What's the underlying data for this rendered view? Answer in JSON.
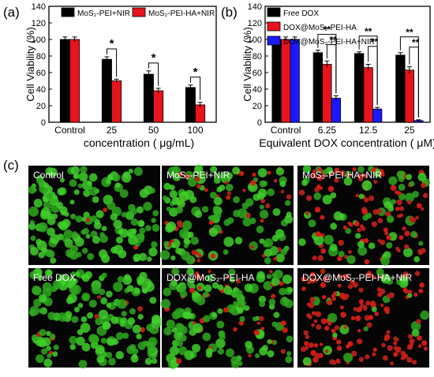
{
  "panel_labels": {
    "a": "(a)",
    "b": "(b)",
    "c": "(c)"
  },
  "chart_data": [
    {
      "type": "bar",
      "panel": "(a)",
      "title": "",
      "xlabel": "concentration ( μg/mL)",
      "ylabel": "Cell Viability (%)",
      "ylim": [
        0,
        140
      ],
      "yticks": [
        0,
        20,
        40,
        60,
        80,
        100,
        120,
        140
      ],
      "categories": [
        "Control",
        "25",
        "50",
        "100"
      ],
      "legend_position": "top",
      "series": [
        {
          "name": "MoS₂-PEI+NIR",
          "color": "#000000",
          "values": [
            100,
            76,
            58,
            42
          ],
          "errors": [
            3,
            3,
            4,
            3
          ]
        },
        {
          "name": "MoS₂-PEI-HA+NIR",
          "color": "#e8141c",
          "values": [
            100,
            50,
            38,
            21
          ],
          "errors": [
            3,
            2,
            3,
            3
          ]
        }
      ],
      "significance": [
        {
          "category": "25",
          "label": "*"
        },
        {
          "category": "50",
          "label": "*"
        },
        {
          "category": "100",
          "label": "*"
        }
      ]
    },
    {
      "type": "bar",
      "panel": "(b)",
      "title": "",
      "xlabel": "Equivalent DOX concentration ( μM)",
      "ylabel": "Cell Viability (%)",
      "ylim": [
        0,
        140
      ],
      "yticks": [
        0,
        20,
        40,
        60,
        80,
        100,
        120,
        140
      ],
      "categories": [
        "Control",
        "6.25",
        "12.5",
        "25"
      ],
      "legend_position": "top-left",
      "series": [
        {
          "name": "Free DOX",
          "color": "#000000",
          "values": [
            100,
            84,
            83,
            81
          ],
          "errors": [
            3,
            3,
            2,
            3
          ]
        },
        {
          "name": "DOX@MoS₂-PEI-HA",
          "color": "#e8141c",
          "values": [
            100,
            70,
            66,
            63
          ],
          "errors": [
            3,
            4,
            4,
            4
          ]
        },
        {
          "name": "DOX@MoS₂-PEI-HA+NIR",
          "color": "#1a1aff",
          "values": [
            100,
            29,
            16,
            2
          ],
          "errors": [
            3,
            3,
            2,
            1
          ]
        }
      ],
      "significance": [
        {
          "category": "6.25",
          "labels": [
            "**",
            "**"
          ]
        },
        {
          "category": "12.5",
          "labels": [
            "**",
            "**"
          ]
        },
        {
          "category": "25",
          "labels": [
            "**",
            "**"
          ]
        }
      ]
    }
  ],
  "micrographs": [
    {
      "label": "Control",
      "live": 0.97,
      "dead": 0.03
    },
    {
      "label": "MoS₂-PEI+NIR",
      "live": 0.7,
      "dead": 0.3
    },
    {
      "label": "MoS₂-PEI-HA+NIR",
      "live": 0.45,
      "dead": 0.55
    },
    {
      "label": "Free DOX",
      "live": 0.95,
      "dead": 0.05
    },
    {
      "label": "DOX@MoS₂-PEI-HA",
      "live": 0.75,
      "dead": 0.25
    },
    {
      "label": "DOX@MoS₂-PEI-HA+NIR",
      "live": 0.12,
      "dead": 0.88
    }
  ]
}
